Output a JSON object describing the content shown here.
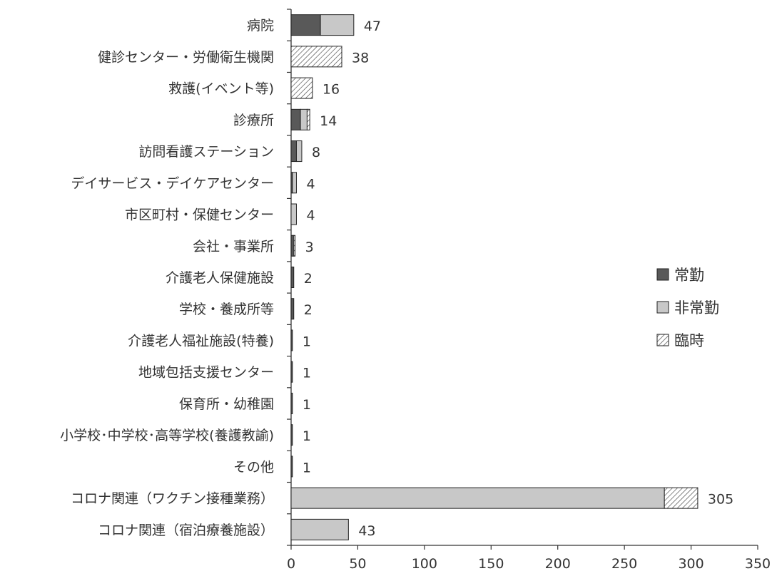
{
  "chart_data": {
    "type": "bar",
    "orientation": "horizontal",
    "stacked": true,
    "categories": [
      "病院",
      "健診センター・労働衛生機関",
      "救護(イベント等)",
      "診療所",
      "訪問看護ステーション",
      "デイサービス・デイケアセンター",
      "市区町村・保健センター",
      "会社・事業所",
      "介護老人保健施設",
      "学校・養成所等",
      "介護老人福祉施設(特養)",
      "地域包括支援センター",
      "保育所・幼稚園",
      "小学校･中学校･高等学校(養護教諭)",
      "その他",
      "コロナ関連（ワクチン接種業務）",
      "コロナ関連（宿泊療養施設）"
    ],
    "series": [
      {
        "name": "常勤",
        "color": "#595959",
        "pattern": "solid",
        "values": [
          22,
          0,
          0,
          7,
          4,
          1,
          0,
          1,
          2,
          2,
          1,
          1,
          1,
          1,
          1,
          0,
          0
        ]
      },
      {
        "name": "非常勤",
        "color": "#c8c8c8",
        "pattern": "solid",
        "values": [
          25,
          0,
          0,
          5,
          4,
          3,
          4,
          1,
          0,
          0,
          0,
          0,
          0,
          0,
          0,
          280,
          43
        ]
      },
      {
        "name": "臨時",
        "color": "#ffffff",
        "pattern": "diagonal-hatch",
        "values": [
          0,
          38,
          16,
          2,
          0,
          0,
          0,
          1,
          0,
          0,
          0,
          0,
          0,
          0,
          0,
          25,
          0
        ]
      }
    ],
    "totals": [
      47,
      38,
      16,
      14,
      8,
      4,
      4,
      3,
      2,
      2,
      1,
      1,
      1,
      1,
      1,
      305,
      43
    ],
    "xlim": [
      0,
      350
    ],
    "xticks": [
      0,
      50,
      100,
      150,
      200,
      250,
      300,
      350
    ],
    "grid": false,
    "legend_position": "right"
  }
}
